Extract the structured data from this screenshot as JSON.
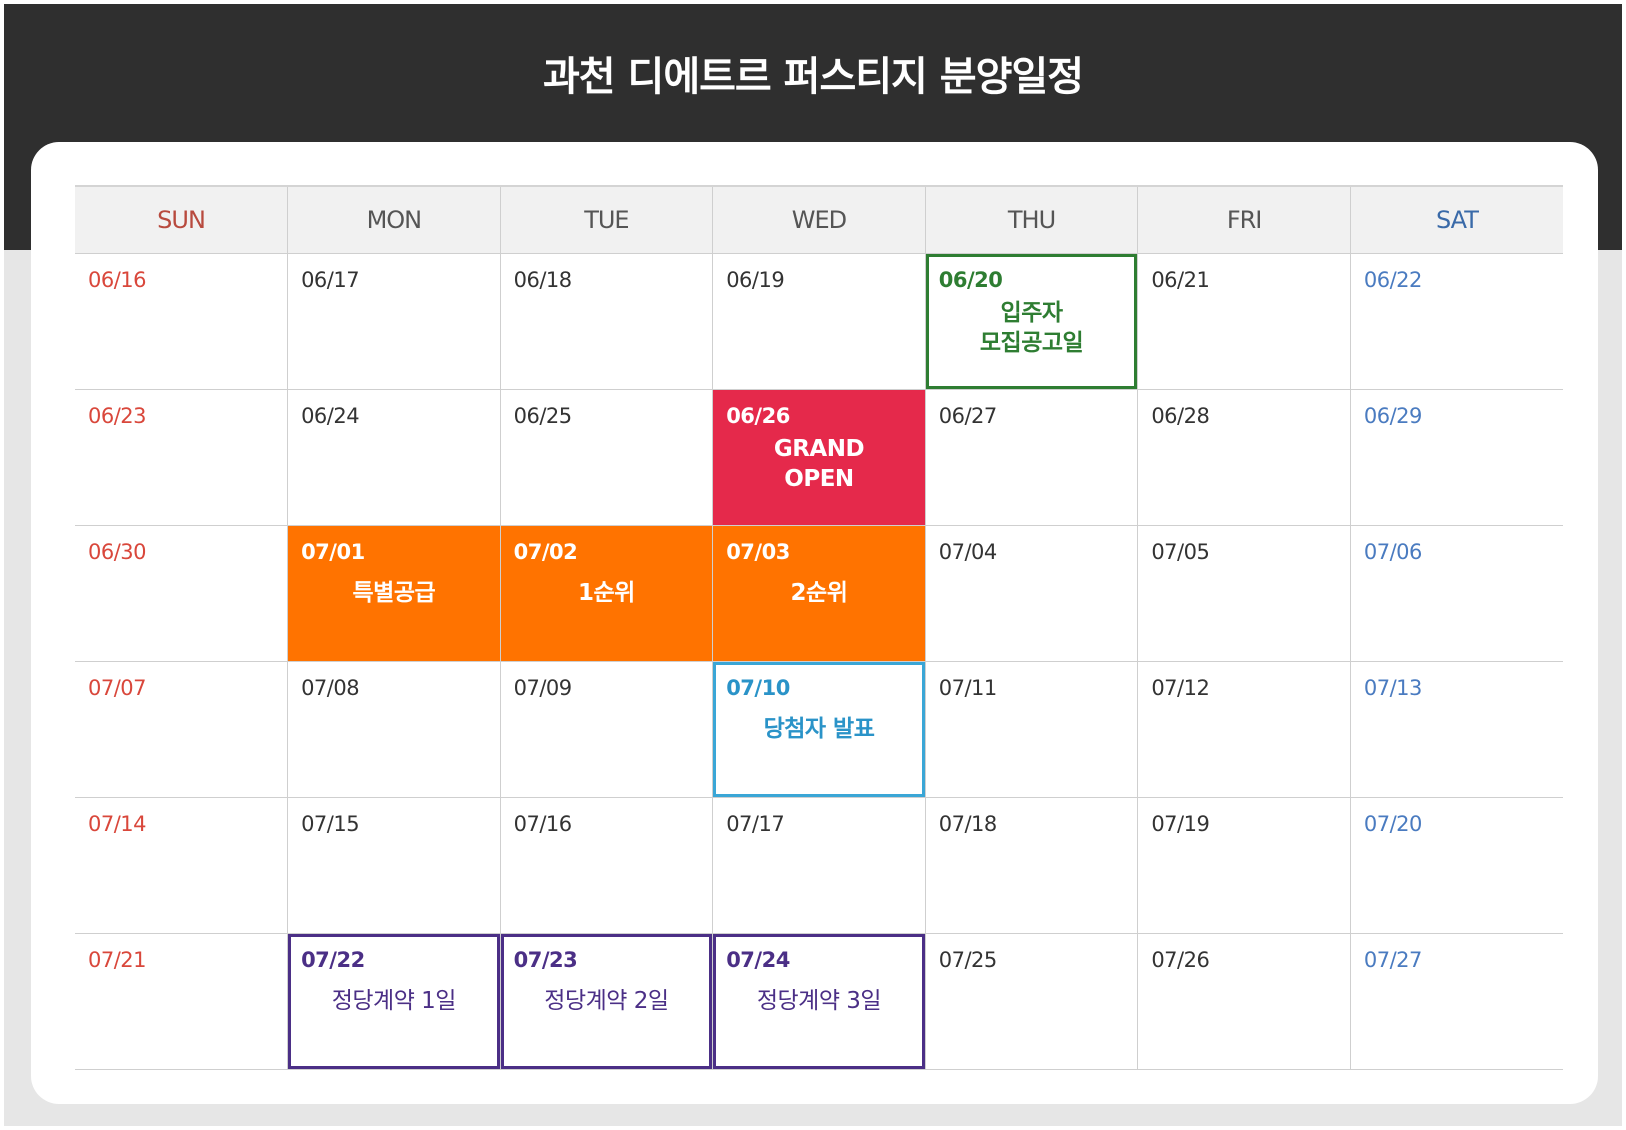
{
  "title": {
    "light": "과천 디에트르 퍼스티지",
    "bold": "분양일정"
  },
  "days": [
    "SUN",
    "MON",
    "TUE",
    "WED",
    "THU",
    "FRI",
    "SAT"
  ],
  "colors": {
    "green": "#2e7d32",
    "red": "#e5294b",
    "orange": "#ff7300",
    "blue": "#3aa6d6",
    "purple": "#4b2f86",
    "header": "#2f2f2f"
  },
  "weeks": [
    [
      {
        "date": "06/16"
      },
      {
        "date": "06/17"
      },
      {
        "date": "06/18"
      },
      {
        "date": "06/19"
      },
      {
        "date": "06/20",
        "event": "입주자\n모집공고일",
        "style": "green"
      },
      {
        "date": "06/21"
      },
      {
        "date": "06/22"
      }
    ],
    [
      {
        "date": "06/23"
      },
      {
        "date": "06/24"
      },
      {
        "date": "06/25"
      },
      {
        "date": "06/26",
        "event": "GRAND\nOPEN",
        "style": "red"
      },
      {
        "date": "06/27"
      },
      {
        "date": "06/28"
      },
      {
        "date": "06/29"
      }
    ],
    [
      {
        "date": "06/30"
      },
      {
        "date": "07/01",
        "event": "특별공급",
        "style": "orange"
      },
      {
        "date": "07/02",
        "event": "1순위",
        "style": "orange"
      },
      {
        "date": "07/03",
        "event": "2순위",
        "style": "orange"
      },
      {
        "date": "07/04"
      },
      {
        "date": "07/05"
      },
      {
        "date": "07/06"
      }
    ],
    [
      {
        "date": "07/07"
      },
      {
        "date": "07/08"
      },
      {
        "date": "07/09"
      },
      {
        "date": "07/10",
        "event": "당첨자 발표",
        "style": "blue"
      },
      {
        "date": "07/11"
      },
      {
        "date": "07/12"
      },
      {
        "date": "07/13"
      }
    ],
    [
      {
        "date": "07/14"
      },
      {
        "date": "07/15"
      },
      {
        "date": "07/16"
      },
      {
        "date": "07/17"
      },
      {
        "date": "07/18"
      },
      {
        "date": "07/19"
      },
      {
        "date": "07/20"
      }
    ],
    [
      {
        "date": "07/21"
      },
      {
        "date": "07/22",
        "event": "정당계약 1일",
        "style": "purple"
      },
      {
        "date": "07/23",
        "event": "정당계약 2일",
        "style": "purple"
      },
      {
        "date": "07/24",
        "event": "정당계약 3일",
        "style": "purple"
      },
      {
        "date": "07/25"
      },
      {
        "date": "07/26"
      },
      {
        "date": "07/27"
      }
    ]
  ]
}
